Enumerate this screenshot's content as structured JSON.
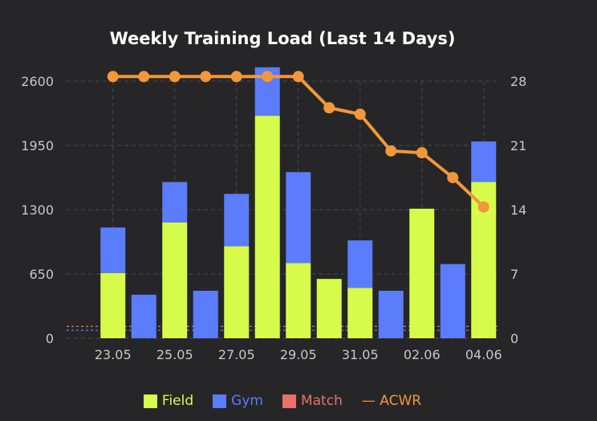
{
  "chart_data": {
    "type": "bar",
    "title": "Weekly Training Load (Last 14 Days)",
    "x": [
      "22.05",
      "23.05",
      "24.05",
      "25.05",
      "26.05",
      "27.05",
      "28.05",
      "29.05",
      "30.05",
      "31.05",
      "01.06",
      "02.06",
      "03.06",
      "04.06"
    ],
    "tick_labels": [
      "23.05",
      "25.05",
      "27.05",
      "29.05",
      "31.05",
      "02.06",
      "04.06"
    ],
    "stacked": true,
    "series": [
      {
        "name": "Field",
        "color": "#d7fb4b",
        "values": [
          0,
          660,
          0,
          1170,
          0,
          930,
          2250,
          760,
          600,
          510,
          0,
          1310,
          0,
          1580
        ]
      },
      {
        "name": "Gym",
        "color": "#5b7cfb",
        "values": [
          0,
          460,
          440,
          410,
          480,
          530,
          490,
          920,
          0,
          480,
          480,
          0,
          750,
          410
        ]
      },
      {
        "name": "Match",
        "color": "#e8716a",
        "values": [
          0,
          0,
          0,
          0,
          0,
          0,
          0,
          0,
          0,
          0,
          0,
          0,
          0,
          0
        ]
      }
    ],
    "line_series": {
      "name": "ACWR",
      "color": "#f2973a",
      "x": [
        "23.05",
        "24.05",
        "25.05",
        "26.05",
        "27.05",
        "28.05",
        "29.05",
        "30.05",
        "31.05",
        "01.06",
        "02.06",
        "03.06",
        "04.06"
      ],
      "values": [
        28.5,
        28.5,
        28.5,
        28.5,
        28.5,
        28.5,
        28.5,
        25.1,
        24.4,
        20.4,
        20.2,
        17.5,
        14.3
      ]
    },
    "reference_lines": [
      {
        "series": "Match",
        "value": 120,
        "color": "#e8716a"
      },
      {
        "series": "Gym",
        "value": 80,
        "color": "#5b7cfb"
      }
    ],
    "y_left": {
      "ylim": [
        0,
        2600
      ],
      "ticks": [
        "0",
        "650",
        "1300",
        "1950",
        "2600"
      ]
    },
    "y_right": {
      "ylim": [
        0,
        28
      ],
      "ticks": [
        "0",
        "7",
        "14",
        "21",
        "28"
      ]
    },
    "grid": true,
    "legend": {
      "position": "bottom",
      "items": [
        {
          "label": "Field",
          "color": "#d7fb4b",
          "kind": "box"
        },
        {
          "label": "Gym",
          "color": "#5b7cfb",
          "kind": "box"
        },
        {
          "label": "Match",
          "color": "#e8716a",
          "kind": "box"
        },
        {
          "label": "— ACWR",
          "color": "#f2973a",
          "kind": "line"
        }
      ]
    }
  }
}
